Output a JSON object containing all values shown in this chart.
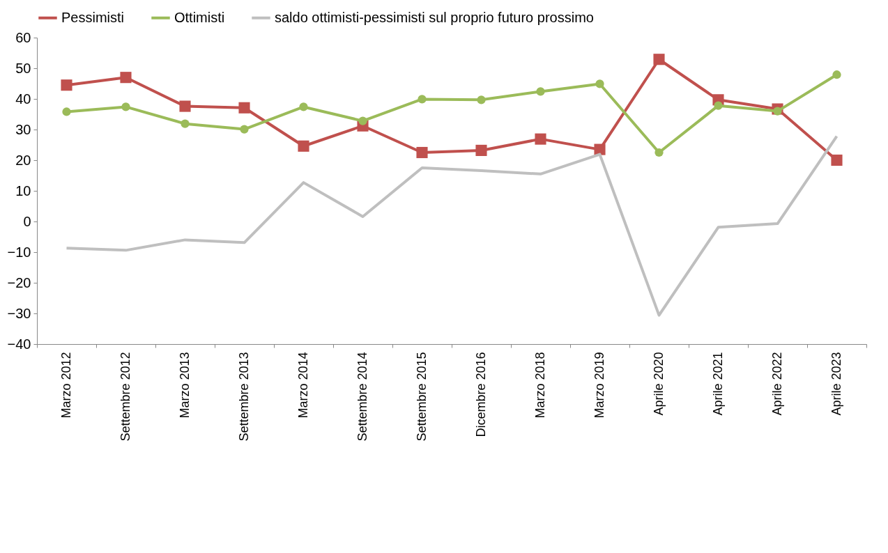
{
  "chart_data": {
    "type": "line",
    "categories": [
      "Marzo 2012",
      "Settembre 2012",
      "Marzo 2013",
      "Settembre 2013",
      "Marzo 2014",
      "Settembre 2014",
      "Settembre 2015",
      "Dicembre 2016",
      "Marzo 2018",
      "Marzo 2019",
      "Aprile 2020",
      "Aprile 2021",
      "Aprile 2022",
      "Aprile 2023"
    ],
    "series": [
      {
        "name": "Pessimisti",
        "color": "#c0504d",
        "marker": "square",
        "values": [
          44.5,
          47,
          37.6,
          37.1,
          24.6,
          31.2,
          22.5,
          23.2,
          26.9,
          23.5,
          52.9,
          39.7,
          36.7,
          20
        ]
      },
      {
        "name": "Ottimisti",
        "color": "#9bbb59",
        "marker": "circle",
        "values": [
          35.8,
          37.4,
          31.9,
          30.1,
          37.4,
          32.8,
          39.9,
          39.7,
          42.4,
          44.9,
          22.5,
          37.8,
          36,
          47.9
        ]
      },
      {
        "name": "saldo ottimisti-pessimisti sul proprio futuro prossimo",
        "color": "#bfbfbf",
        "marker": "none",
        "values": [
          -8.7,
          -9.4,
          -6,
          -6.9,
          12.7,
          1.6,
          17.5,
          16.6,
          15.5,
          21.9,
          -30.6,
          -1.9,
          -0.7,
          27.8
        ]
      }
    ],
    "ylim": [
      -40,
      60
    ],
    "yticks": [
      -40,
      -30,
      -20,
      -10,
      0,
      10,
      20,
      30,
      40,
      50,
      60
    ],
    "grid": false,
    "legend": "top"
  }
}
